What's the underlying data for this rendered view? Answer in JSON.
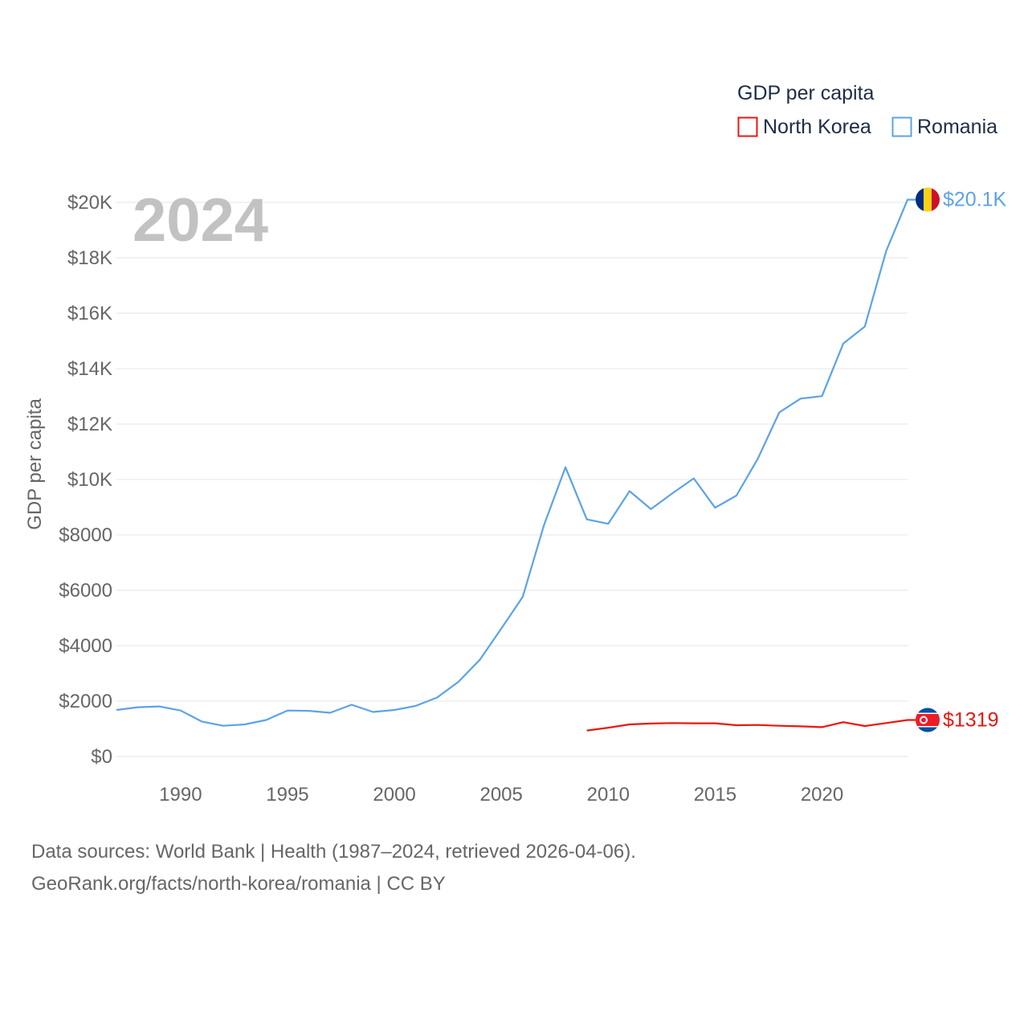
{
  "chart_data": {
    "type": "line",
    "title": "",
    "year_label": "2024",
    "ylabel": "GDP per capita",
    "xlabel": "",
    "xlim": [
      1987,
      2024
    ],
    "ylim": [
      0,
      20000
    ],
    "x_ticks": [
      {
        "value": 1990,
        "label": "1990"
      },
      {
        "value": 1995,
        "label": "1995"
      },
      {
        "value": 2000,
        "label": "2000"
      },
      {
        "value": 2005,
        "label": "2005"
      },
      {
        "value": 2010,
        "label": "2010"
      },
      {
        "value": 2015,
        "label": "2015"
      },
      {
        "value": 2020,
        "label": "2020"
      }
    ],
    "y_ticks": [
      {
        "value": 0,
        "label": "$0"
      },
      {
        "value": 2000,
        "label": "$2000"
      },
      {
        "value": 4000,
        "label": "$4000"
      },
      {
        "value": 6000,
        "label": "$6000"
      },
      {
        "value": 8000,
        "label": "$8000"
      },
      {
        "value": 10000,
        "label": "$10K"
      },
      {
        "value": 12000,
        "label": "$12K"
      },
      {
        "value": 14000,
        "label": "$14K"
      },
      {
        "value": 16000,
        "label": "$16K"
      },
      {
        "value": 18000,
        "label": "$18K"
      },
      {
        "value": 20000,
        "label": "$20K"
      }
    ],
    "grid": true,
    "legend": {
      "title": "GDP per capita",
      "placement": "top-right",
      "entries": [
        "North Korea",
        "Romania"
      ]
    },
    "series": [
      {
        "name": "Romania",
        "color": "#5ca3e6",
        "end_label": "$20.1K",
        "flag": "romania-flag",
        "x": [
          1987,
          1988,
          1989,
          1990,
          1991,
          1992,
          1993,
          1994,
          1995,
          1996,
          1997,
          1998,
          1999,
          2000,
          2001,
          2002,
          2003,
          2004,
          2005,
          2006,
          2007,
          2008,
          2009,
          2010,
          2011,
          2012,
          2013,
          2014,
          2015,
          2016,
          2017,
          2018,
          2019,
          2020,
          2021,
          2022,
          2023,
          2024
        ],
        "values": [
          1680,
          1780,
          1810,
          1660,
          1260,
          1110,
          1160,
          1320,
          1660,
          1650,
          1580,
          1870,
          1610,
          1680,
          1830,
          2130,
          2700,
          3500,
          4620,
          5760,
          8360,
          10440,
          8560,
          8400,
          9580,
          8930,
          9500,
          10040,
          8980,
          9420,
          10750,
          12420,
          12920,
          13010,
          14910,
          15520,
          18240,
          20100
        ]
      },
      {
        "name": "North Korea",
        "color": "#e8170f",
        "end_label": "$1319",
        "flag": "north-korea-flag",
        "x": [
          2009,
          2010,
          2011,
          2012,
          2013,
          2014,
          2015,
          2016,
          2017,
          2018,
          2019,
          2020,
          2021,
          2022,
          2023,
          2024
        ],
        "values": [
          940,
          1040,
          1160,
          1190,
          1210,
          1200,
          1200,
          1130,
          1140,
          1110,
          1090,
          1060,
          1240,
          1100,
          1210,
          1319
        ]
      }
    ]
  },
  "source": {
    "line1": "Data sources: World Bank | Health (1987–2024, retrieved 2026-04-06).",
    "line2": "GeoRank.org/facts/north-korea/romania | CC BY"
  }
}
